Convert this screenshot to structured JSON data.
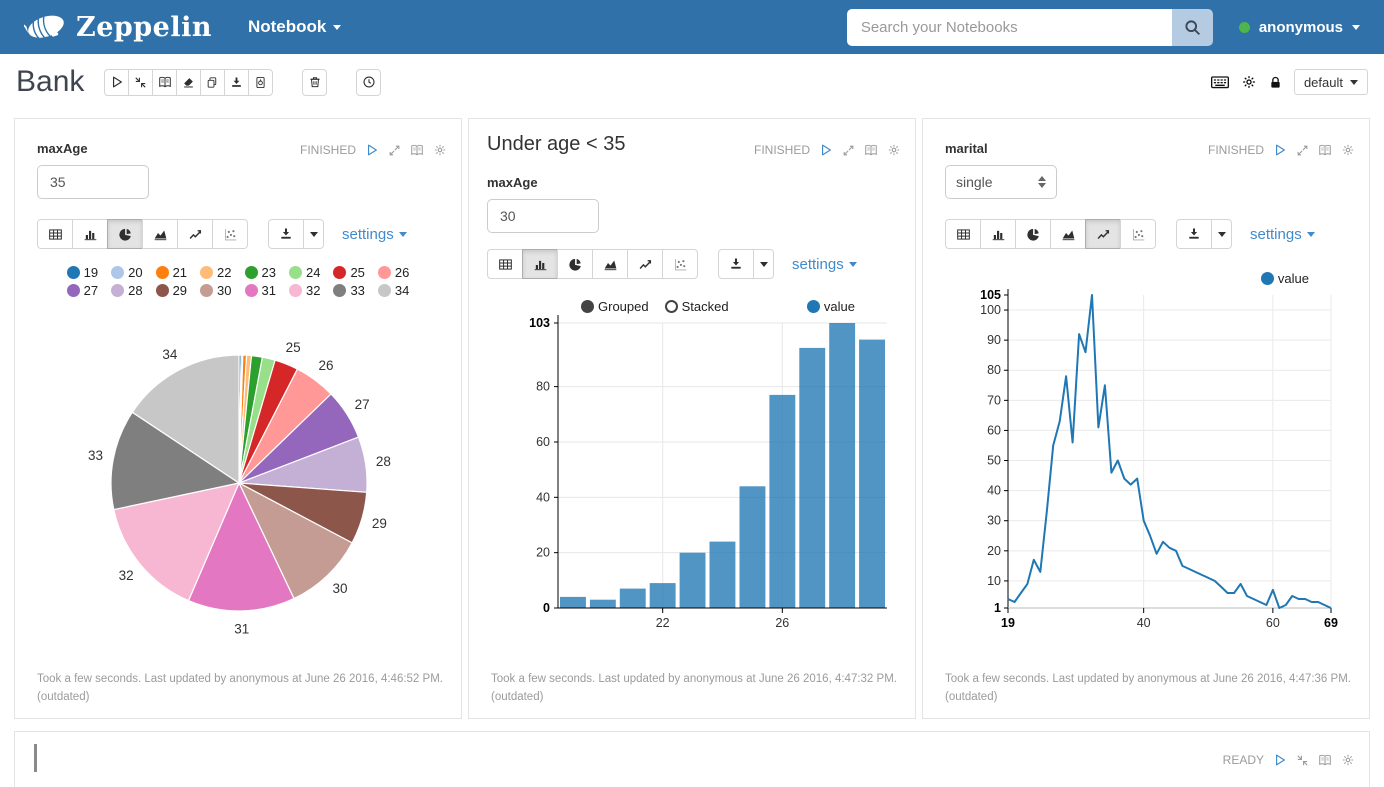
{
  "navbar": {
    "brand": "Zeppelin",
    "menu_label": "Notebook",
    "search_placeholder": "Search your Notebooks",
    "user_label": "anonymous"
  },
  "toolbar": {
    "note_title": "Bank",
    "interpreter_label": "default"
  },
  "colors": {
    "navbar_bg": "#3071a9",
    "accent_blue": "#428bca",
    "series_blue": "#1f77b4",
    "status_gray": "#9b9b9b",
    "online_green": "#4cb54c"
  },
  "icons": {
    "navbar": [
      "zeppelin-logo",
      "caret-down",
      "search-icon"
    ],
    "toolbar": [
      "play-icon",
      "compress-icon",
      "book-icon",
      "eraser-icon",
      "copy-icon",
      "download-icon",
      "code-file-icon",
      "trash-icon",
      "clock-icon",
      "keyboard-icon",
      "gear-icon",
      "lock-icon"
    ],
    "paragraph_status": [
      "play-icon",
      "expand-icon",
      "book-icon",
      "gear-icon"
    ],
    "chart_types": [
      "table-icon",
      "bar-chart-icon",
      "pie-chart-icon",
      "area-chart-icon",
      "line-chart-icon",
      "scatter-chart-icon"
    ],
    "misc": [
      "download-icon",
      "caret-down",
      "stepper-icon"
    ]
  },
  "paragraphs": [
    {
      "form_label": "maxAge",
      "form_value": "35",
      "status": "FINISHED",
      "settings_label": "settings",
      "footer": "Took a few seconds. Last updated by anonymous at June 26 2016, 4:46:52 PM.",
      "footer2": "(outdated)",
      "chart_data": {
        "type": "pie",
        "categories": [
          "19",
          "20",
          "21",
          "22",
          "23",
          "24",
          "25",
          "26",
          "27",
          "28",
          "29",
          "30",
          "31",
          "32",
          "33",
          "34"
        ],
        "values": [
          4,
          3,
          7,
          9,
          20,
          24,
          44,
          77,
          94,
          103,
          97,
          150,
          199,
          224,
          186,
          231
        ],
        "colors": [
          "#1f77b4",
          "#aec7e8",
          "#ff7f0e",
          "#ffbb78",
          "#2ca02c",
          "#98df8a",
          "#d62728",
          "#ff9896",
          "#9467bd",
          "#c5b0d5",
          "#8c564b",
          "#c49c94",
          "#e377c2",
          "#f7b6d2",
          "#7f7f7f",
          "#c7c7c7"
        ],
        "label_min_fraction": 0.025,
        "legend_position": "top"
      }
    },
    {
      "title": "Under age < 35",
      "form_label": "maxAge",
      "form_value": "30",
      "status": "FINISHED",
      "settings_label": "settings",
      "footer": "Took a few seconds. Last updated by anonymous at June 26 2016, 4:47:32 PM.",
      "footer2": "(outdated)",
      "chart_data": {
        "type": "bar",
        "categories": [
          "19",
          "20",
          "21",
          "22",
          "23",
          "24",
          "25",
          "26",
          "27",
          "28",
          "29"
        ],
        "values": [
          4,
          3,
          7,
          9,
          20,
          24,
          44,
          77,
          94,
          103,
          97
        ],
        "series_name": "value",
        "bar_color": "#1f77b4",
        "bar_opacity": 0.78,
        "ylim": [
          0,
          103
        ],
        "yticks": [
          0,
          20,
          40,
          60,
          80,
          103
        ],
        "xticks_shown": [
          {
            "label": "22",
            "index": 3
          },
          {
            "label": "26",
            "index": 7
          }
        ],
        "controls": [
          "Grouped",
          "Stacked"
        ],
        "selected_control": "Grouped",
        "grid": true,
        "legend_position": "top-right"
      }
    },
    {
      "form_label": "marital",
      "form_value": "single",
      "status": "FINISHED",
      "settings_label": "settings",
      "footer": "Took a few seconds. Last updated by anonymous at June 26 2016, 4:47:36 PM.",
      "footer2": "(outdated)",
      "chart_data": {
        "type": "line",
        "series_name": "value",
        "line_color": "#1f77b4",
        "x": [
          19,
          20,
          21,
          22,
          23,
          24,
          25,
          26,
          27,
          28,
          29,
          30,
          31,
          32,
          33,
          34,
          35,
          36,
          37,
          38,
          39,
          40,
          41,
          42,
          43,
          44,
          45,
          46,
          47,
          48,
          49,
          50,
          51,
          52,
          53,
          54,
          55,
          56,
          57,
          58,
          59,
          60,
          61,
          62,
          63,
          64,
          65,
          66,
          67,
          68,
          69
        ],
        "values": [
          4,
          3,
          6,
          9,
          17,
          13,
          33,
          55,
          63,
          78,
          56,
          92,
          86,
          105,
          61,
          75,
          46,
          50,
          44,
          42,
          44,
          30,
          25,
          19,
          23,
          21,
          20,
          15,
          14,
          13,
          12,
          11,
          10,
          8,
          6,
          6,
          9,
          5,
          4,
          3,
          2,
          7,
          1,
          2,
          5,
          4,
          4,
          3,
          3,
          2,
          1
        ],
        "xlim": [
          19,
          69
        ],
        "ylim": [
          1,
          105
        ],
        "yticks": [
          1,
          10,
          20,
          30,
          40,
          50,
          60,
          70,
          80,
          90,
          100,
          105
        ],
        "xticks": [
          19,
          40,
          60,
          69
        ],
        "grid": true,
        "legend_position": "top-right"
      }
    }
  ],
  "bottom_paragraph": {
    "status": "READY"
  }
}
